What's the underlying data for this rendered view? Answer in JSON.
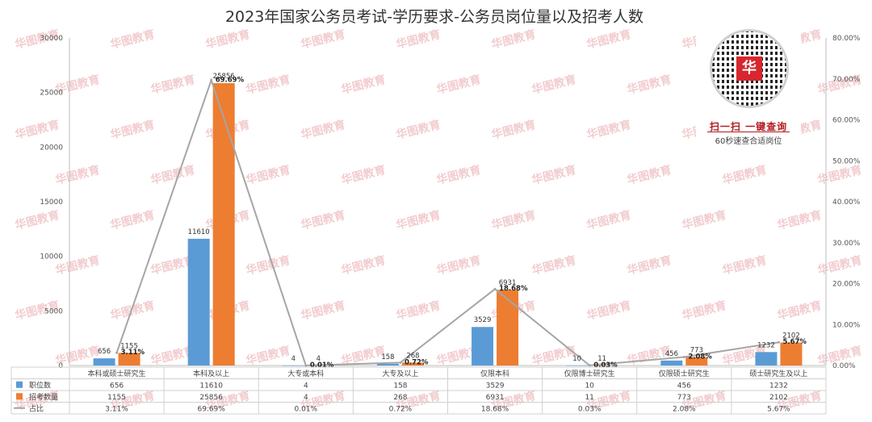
{
  "chart_data": {
    "type": "bar",
    "title": "2023年国家公务员考试-学历要求-公务员岗位量以及招考人数",
    "categories": [
      "本科或硕士研究生",
      "本科及以上",
      "大专或本科",
      "大专及以上",
      "仅限本科",
      "仅限博士研究生",
      "仅限硕士研究生",
      "硕士研究生及以上"
    ],
    "series": [
      {
        "name": "职位数",
        "values": [
          656,
          11610,
          4,
          158,
          3529,
          10,
          456,
          1232
        ],
        "color": "#5b9bd5",
        "value_labels": [
          "656",
          "11610",
          "4",
          "158",
          "3529",
          "10",
          "456",
          "1232"
        ]
      },
      {
        "name": "招考数量",
        "values": [
          1155,
          25856,
          4,
          268,
          6931,
          11,
          773,
          2102
        ],
        "color": "#ed7d31",
        "value_labels": [
          "1155",
          "25856",
          "4",
          "268",
          "6931",
          "11",
          "773",
          "2102"
        ]
      }
    ],
    "line_series": {
      "name": "占比",
      "values": [
        3.11,
        69.69,
        0.01,
        0.72,
        18.68,
        0.03,
        2.08,
        5.67
      ],
      "labels": [
        "3.11%",
        "69.69%",
        "0.01%",
        "0.72%",
        "18.68%",
        "0.03%",
        "2.08%",
        "5.67%"
      ],
      "color": "#a5a5a5"
    },
    "ylim": [
      0,
      30000
    ],
    "y_ticks": [
      "0",
      "5000",
      "10000",
      "15000",
      "20000",
      "25000",
      "30000"
    ],
    "y2lim": [
      0,
      80
    ],
    "y2_ticks": [
      "0.00%",
      "10.00%",
      "20.00%",
      "30.00%",
      "40.00%",
      "50.00%",
      "60.00%",
      "70.00%",
      "80.00%"
    ],
    "data_table": true,
    "legend": "left of data table"
  },
  "watermark": "华图教育",
  "qr": {
    "logo_text": "华",
    "caption1": "扫一扫 一键查询",
    "caption2": "60秒速查合适岗位"
  }
}
